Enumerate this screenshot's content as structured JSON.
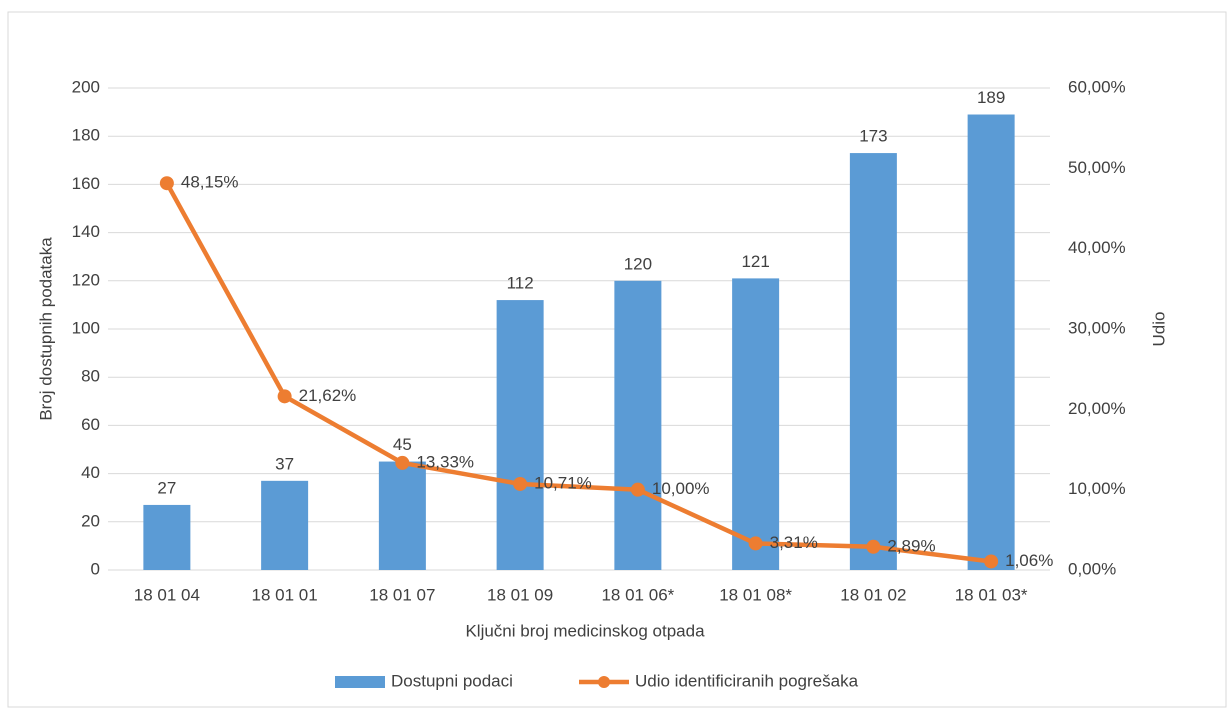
{
  "chart_data": {
    "type": "combo",
    "x_label": "Ključni broj medicinskog otpada",
    "y_label": "Broj dostupnih podataka",
    "y2_label": "Udio",
    "categories": [
      "18 01 04",
      "18 01 01",
      "18 01 07",
      "18 01 09",
      "18 01 06*",
      "18 01 08*",
      "18 01 02",
      "18 01 03*"
    ],
    "series": [
      {
        "name": "Dostupni podaci",
        "type": "bar",
        "color": "#5b9bd5",
        "values": [
          27,
          37,
          45,
          112,
          120,
          121,
          173,
          189
        ]
      },
      {
        "name": "Udio identificiranih pogrešaka",
        "type": "line",
        "axis": "y2",
        "color": "#ed7d31",
        "values": [
          48.15,
          21.62,
          13.33,
          10.71,
          10.0,
          3.31,
          2.89,
          1.06
        ],
        "value_labels": [
          "48,15%",
          "21,62%",
          "13,33%",
          "10,71%",
          "10,00%",
          "3,31%",
          "2,89%",
          "1,06%"
        ]
      }
    ],
    "ylim": [
      0,
      200
    ],
    "yticks": [
      0,
      20,
      40,
      60,
      80,
      100,
      120,
      140,
      160,
      180,
      200
    ],
    "y2lim": [
      0,
      60
    ],
    "y2ticks": [
      {
        "value": 0,
        "label": "0,00%"
      },
      {
        "value": 10,
        "label": "10,00%"
      },
      {
        "value": 20,
        "label": "20,00%"
      },
      {
        "value": 30,
        "label": "30,00%"
      },
      {
        "value": 40,
        "label": "40,00%"
      },
      {
        "value": 50,
        "label": "50,00%"
      },
      {
        "value": 60,
        "label": "60,00%"
      }
    ],
    "grid": true,
    "legend": "bottom"
  }
}
